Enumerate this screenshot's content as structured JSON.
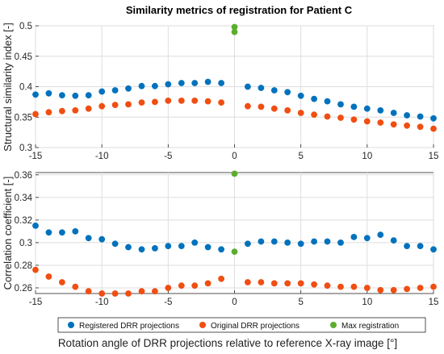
{
  "chart_data": {
    "type": "scatter",
    "title": "Similarity metrics of registration for Patient C",
    "xlabel": "Rotation angle of DRR projections relative to reference X-ray image [°]",
    "xlim": [
      -15,
      15
    ],
    "xticks": [
      -15,
      -10,
      -5,
      0,
      5,
      10,
      15
    ],
    "grid": true,
    "legend": {
      "placement": "bottom",
      "entries": [
        {
          "name": "Registered DRR projections",
          "color": "#0072BD"
        },
        {
          "name": "Original DRR projections",
          "color": "#F04E12"
        },
        {
          "name": "Max registration",
          "color": "#5CAD2E"
        }
      ]
    },
    "panels": [
      {
        "ylabel": "Structural similarity index [-]",
        "ylim": [
          0.3,
          0.5
        ],
        "yticks": [
          "0.3",
          "0.35",
          "0.4",
          "0.45",
          "0.5"
        ],
        "series": [
          {
            "name": "Registered DRR projections",
            "color": "#0072BD",
            "x": [
              -15,
              -14,
              -13,
              -12,
              -11,
              -10,
              -9,
              -8,
              -7,
              -6,
              -5,
              -4,
              -3,
              -2,
              -1,
              1,
              2,
              3,
              4,
              5,
              6,
              7,
              8,
              9,
              10,
              11,
              12,
              13,
              14,
              15
            ],
            "y": [
              0.387,
              0.389,
              0.386,
              0.385,
              0.386,
              0.392,
              0.394,
              0.397,
              0.401,
              0.401,
              0.404,
              0.406,
              0.406,
              0.408,
              0.406,
              0.4,
              0.398,
              0.394,
              0.391,
              0.385,
              0.38,
              0.376,
              0.371,
              0.367,
              0.364,
              0.361,
              0.357,
              0.353,
              0.351,
              0.348
            ]
          },
          {
            "name": "Original DRR projections",
            "color": "#F04E12",
            "x": [
              -15,
              -14,
              -13,
              -12,
              -11,
              -10,
              -9,
              -8,
              -7,
              -6,
              -5,
              -4,
              -3,
              -2,
              -1,
              1,
              2,
              3,
              4,
              5,
              6,
              7,
              8,
              9,
              10,
              11,
              12,
              13,
              14,
              15
            ],
            "y": [
              0.355,
              0.358,
              0.36,
              0.361,
              0.364,
              0.368,
              0.37,
              0.371,
              0.374,
              0.375,
              0.377,
              0.377,
              0.377,
              0.376,
              0.374,
              0.368,
              0.367,
              0.364,
              0.361,
              0.357,
              0.354,
              0.351,
              0.349,
              0.346,
              0.343,
              0.341,
              0.338,
              0.336,
              0.334,
              0.331
            ]
          },
          {
            "name": "Max registration",
            "color": "#5CAD2E",
            "x": [
              0,
              0
            ],
            "y": [
              0.498,
              0.49
            ]
          }
        ]
      },
      {
        "ylabel": "Correlation coefficient [-]",
        "ylim": [
          0.255,
          0.362
        ],
        "yticks": [
          "0.26",
          "0.28",
          "0.3",
          "0.32",
          "0.34",
          "0.36"
        ],
        "series": [
          {
            "name": "Registered DRR projections",
            "color": "#0072BD",
            "x": [
              -15,
              -14,
              -13,
              -12,
              -11,
              -10,
              -9,
              -8,
              -7,
              -6,
              -5,
              -4,
              -3,
              -2,
              -1,
              1,
              2,
              3,
              4,
              5,
              6,
              7,
              8,
              9,
              10,
              11,
              12,
              13,
              14,
              15
            ],
            "y": [
              0.315,
              0.309,
              0.309,
              0.31,
              0.304,
              0.303,
              0.299,
              0.296,
              0.294,
              0.295,
              0.297,
              0.297,
              0.3,
              0.296,
              0.294,
              0.299,
              0.301,
              0.301,
              0.3,
              0.299,
              0.301,
              0.301,
              0.3,
              0.305,
              0.304,
              0.307,
              0.302,
              0.297,
              0.297,
              0.294
            ]
          },
          {
            "name": "Original DRR projections",
            "color": "#F04E12",
            "x": [
              -15,
              -14,
              -13,
              -12,
              -11,
              -10,
              -9,
              -8,
              -7,
              -6,
              -5,
              -4,
              -3,
              -2,
              -1,
              1,
              2,
              3,
              4,
              5,
              6,
              7,
              8,
              9,
              10,
              11,
              12,
              13,
              14,
              15
            ],
            "y": [
              0.276,
              0.27,
              0.265,
              0.261,
              0.257,
              0.255,
              0.255,
              0.255,
              0.257,
              0.257,
              0.26,
              0.262,
              0.262,
              0.264,
              0.268,
              0.265,
              0.265,
              0.264,
              0.264,
              0.264,
              0.263,
              0.262,
              0.261,
              0.261,
              0.26,
              0.258,
              0.258,
              0.259,
              0.26,
              0.261
            ]
          },
          {
            "name": "Max registration",
            "color": "#5CAD2E",
            "x": [
              0,
              0
            ],
            "y": [
              0.361,
              0.292
            ]
          }
        ]
      }
    ]
  }
}
